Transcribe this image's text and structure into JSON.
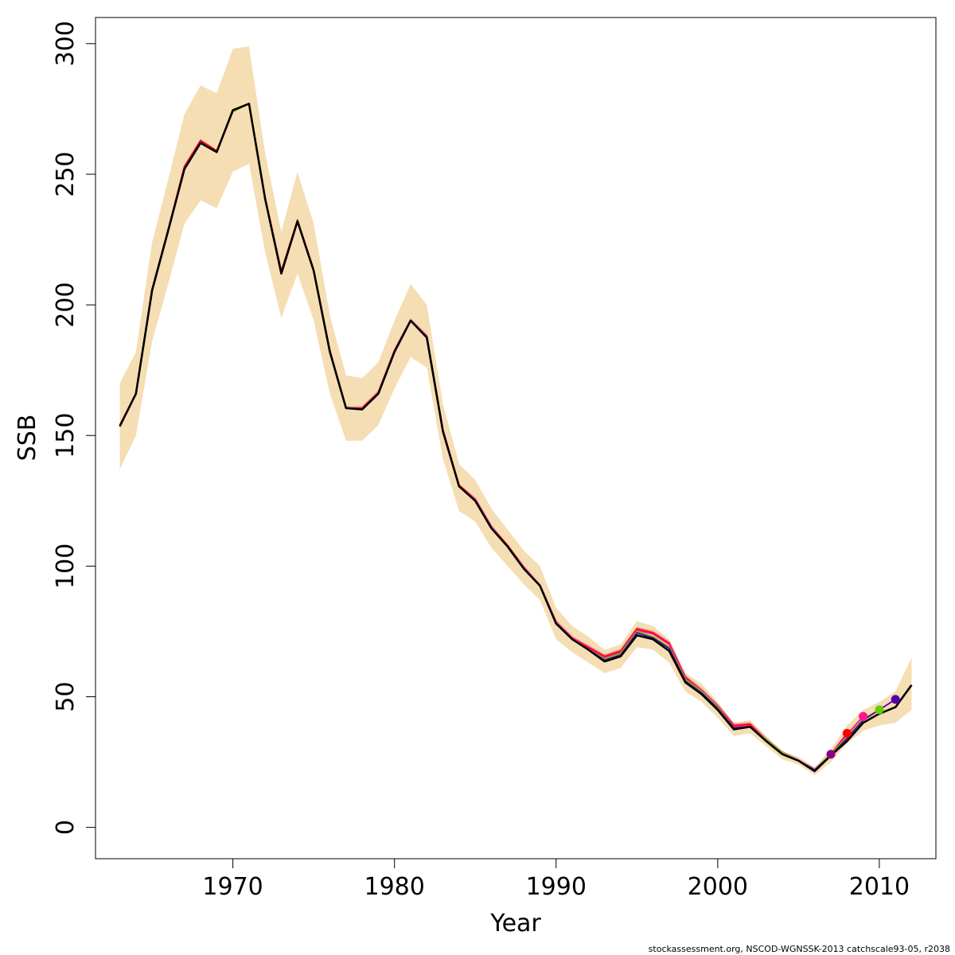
{
  "chart_data": {
    "type": "line",
    "title": "",
    "xlabel": "Year",
    "ylabel": "SSB",
    "xlim": [
      1961.5,
      2013.5
    ],
    "ylim": [
      -12,
      310
    ],
    "xticks": [
      1970,
      1980,
      1990,
      2000,
      2010
    ],
    "yticks": [
      0,
      50,
      100,
      150,
      200,
      250,
      300
    ],
    "grid": false,
    "band_color": "#f5deb3",
    "footnote": "stockassessment.org, NSCOD-WGNSSK-2013  catchscale93-05, r2038",
    "series": [
      {
        "role": "confidence band",
        "color": "#f5deb3",
        "x": [
          1963,
          1964,
          1965,
          1966,
          1967,
          1968,
          1969,
          1970,
          1971,
          1972,
          1973,
          1974,
          1975,
          1976,
          1977,
          1978,
          1979,
          1980,
          1981,
          1982,
          1983,
          1984,
          1985,
          1986,
          1987,
          1988,
          1989,
          1990,
          1991,
          1992,
          1993,
          1994,
          1995,
          1996,
          1997,
          1998,
          1999,
          2000,
          2001,
          2002,
          2003,
          2004,
          2005,
          2006,
          2007,
          2008,
          2009,
          2010,
          2011,
          2012
        ],
        "lower": [
          137,
          150,
          186,
          208,
          231,
          240,
          237,
          251,
          254,
          220,
          195,
          212,
          194,
          166,
          148,
          148,
          154,
          168,
          180,
          176,
          141,
          121,
          117,
          107,
          100,
          93,
          87,
          72,
          67,
          63,
          59,
          61,
          69,
          68,
          63,
          52,
          48,
          42,
          35,
          36,
          31,
          26,
          24,
          20,
          25,
          32,
          37,
          39,
          40,
          45
        ],
        "upper": [
          170,
          182,
          224,
          248,
          273,
          284,
          281,
          298,
          299,
          258,
          228,
          251,
          231,
          196,
          173,
          172,
          178,
          194,
          208,
          200,
          162,
          139,
          133,
          122,
          114,
          106,
          100,
          84,
          77,
          73,
          68,
          70,
          79,
          77,
          72,
          59,
          55,
          48,
          40,
          41,
          35,
          29,
          27,
          23,
          30,
          39,
          45,
          48,
          52,
          65
        ]
      },
      {
        "role": "retrospective",
        "color": "#e8a0a0",
        "x": [
          1963,
          1964,
          1965,
          1966,
          1967,
          1968,
          1969,
          1970,
          1971,
          1972,
          1973,
          1974,
          1975,
          1976,
          1977,
          1978,
          1979,
          1980,
          1981,
          1982,
          1983,
          1984,
          1985,
          1986,
          1987,
          1988,
          1989,
          1990,
          1991,
          1992,
          1993,
          1994,
          1995,
          1996,
          1997,
          1998,
          1999,
          2000,
          2001,
          2002,
          2003,
          2004,
          2005,
          2006,
          2007
        ],
        "values": [
          154,
          166,
          206,
          229,
          253,
          263,
          259,
          274.5,
          277,
          241,
          213,
          232.5,
          213.5,
          183,
          161,
          161,
          167,
          183,
          194.5,
          188.5,
          152.5,
          131,
          126,
          115.5,
          108,
          100,
          93,
          79,
          73,
          69.5,
          66,
          68,
          76.5,
          75,
          71,
          58,
          53,
          47,
          39.5,
          40,
          34,
          29,
          26,
          22.5,
          28
        ]
      },
      {
        "role": "retrospective",
        "color": "#ff0000",
        "x": [
          1963,
          1964,
          1965,
          1966,
          1967,
          1968,
          1969,
          1970,
          1971,
          1972,
          1973,
          1974,
          1975,
          1976,
          1977,
          1978,
          1979,
          1980,
          1981,
          1982,
          1983,
          1984,
          1985,
          1986,
          1987,
          1988,
          1989,
          1990,
          1991,
          1992,
          1993,
          1994,
          1995,
          1996,
          1997,
          1998,
          1999,
          2000,
          2001,
          2002,
          2003,
          2004,
          2005,
          2006,
          2007,
          2008
        ],
        "values": [
          154,
          166,
          206,
          229,
          253,
          263,
          259,
          274,
          277,
          241,
          213,
          232.5,
          213.5,
          182.5,
          160.5,
          160.5,
          166.5,
          182.5,
          194,
          188,
          152,
          131,
          125.5,
          115,
          108,
          99.5,
          92.5,
          78.5,
          72.5,
          69,
          65.5,
          67.5,
          76,
          74.5,
          70.5,
          57.5,
          52.5,
          46.5,
          39,
          39.5,
          33.5,
          28.5,
          25.5,
          22,
          28,
          36
        ]
      },
      {
        "role": "retrospective",
        "color": "#ff1493",
        "x": [
          1963,
          1964,
          1965,
          1966,
          1967,
          1968,
          1969,
          1970,
          1971,
          1972,
          1973,
          1974,
          1975,
          1976,
          1977,
          1978,
          1979,
          1980,
          1981,
          1982,
          1983,
          1984,
          1985,
          1986,
          1987,
          1988,
          1989,
          1990,
          1991,
          1992,
          1993,
          1994,
          1995,
          1996,
          1997,
          1998,
          1999,
          2000,
          2001,
          2002,
          2003,
          2004,
          2005,
          2006,
          2007,
          2008,
          2009
        ],
        "values": [
          154,
          166,
          206,
          229,
          252.5,
          262.5,
          258.5,
          274,
          277,
          241,
          212.5,
          232,
          213,
          182.5,
          160.5,
          160,
          166.5,
          182.5,
          194,
          188,
          152,
          130.5,
          125.5,
          115,
          107.5,
          99.5,
          92.5,
          78.5,
          72.5,
          68.5,
          65,
          67,
          75.5,
          74,
          70,
          57,
          52.5,
          46.5,
          38.5,
          39,
          33.5,
          28.5,
          25.5,
          22,
          28,
          35.5,
          42.5
        ]
      },
      {
        "role": "retrospective",
        "color": "#66cc00",
        "x": [
          1963,
          1964,
          1965,
          1966,
          1967,
          1968,
          1969,
          1970,
          1971,
          1972,
          1973,
          1974,
          1975,
          1976,
          1977,
          1978,
          1979,
          1980,
          1981,
          1982,
          1983,
          1984,
          1985,
          1986,
          1987,
          1988,
          1989,
          1990,
          1991,
          1992,
          1993,
          1994,
          1995,
          1996,
          1997,
          1998,
          1999,
          2000,
          2001,
          2002,
          2003,
          2004,
          2005,
          2006,
          2007,
          2008,
          2009,
          2010
        ],
        "values": [
          153.5,
          166,
          205.5,
          228.5,
          252,
          262,
          258.5,
          274,
          277,
          240.5,
          212,
          232,
          213,
          182,
          160.5,
          160,
          166,
          182,
          194,
          187.5,
          151.5,
          130.5,
          125,
          114.5,
          107.5,
          99,
          92.5,
          78,
          72,
          68,
          64.5,
          66.5,
          75,
          73,
          69,
          56.5,
          52,
          46,
          38,
          38.5,
          33.5,
          28.5,
          25.5,
          22,
          28,
          34.5,
          41.5,
          45
        ]
      },
      {
        "role": "retrospective",
        "color": "#5500aa",
        "x": [
          1963,
          1964,
          1965,
          1966,
          1967,
          1968,
          1969,
          1970,
          1971,
          1972,
          1973,
          1974,
          1975,
          1976,
          1977,
          1978,
          1979,
          1980,
          1981,
          1982,
          1983,
          1984,
          1985,
          1986,
          1987,
          1988,
          1989,
          1990,
          1991,
          1992,
          1993,
          1994,
          1995,
          1996,
          1997,
          1998,
          1999,
          2000,
          2001,
          2002,
          2003,
          2004,
          2005,
          2006,
          2007,
          2008,
          2009,
          2010,
          2011
        ],
        "values": [
          153.5,
          166,
          205.5,
          228.5,
          252,
          262,
          258.5,
          274.5,
          277,
          240.5,
          212,
          232,
          213,
          182,
          160.5,
          160,
          166,
          182,
          194,
          187.5,
          151.5,
          130.5,
          125,
          114.5,
          107.5,
          99,
          92.5,
          78,
          72,
          68,
          64,
          66,
          74.5,
          72.5,
          68.5,
          56,
          51.5,
          45.5,
          38,
          38.5,
          33,
          28,
          25.5,
          22,
          27.5,
          34,
          41,
          45,
          49
        ]
      },
      {
        "role": "estimate",
        "name": "",
        "color": "#000000",
        "x": [
          1963,
          1964,
          1965,
          1966,
          1967,
          1968,
          1969,
          1970,
          1971,
          1972,
          1973,
          1974,
          1975,
          1976,
          1977,
          1978,
          1979,
          1980,
          1981,
          1982,
          1983,
          1984,
          1985,
          1986,
          1987,
          1988,
          1989,
          1990,
          1991,
          1992,
          1993,
          1994,
          1995,
          1996,
          1997,
          1998,
          1999,
          2000,
          2001,
          2002,
          2003,
          2004,
          2005,
          2006,
          2007,
          2008,
          2009,
          2010,
          2011,
          2012
        ],
        "values": [
          153.5,
          166,
          205.5,
          228.5,
          252,
          262,
          258.5,
          274.5,
          277,
          240.5,
          212,
          232,
          213,
          182,
          160.5,
          160,
          166,
          182,
          194,
          187.5,
          151.5,
          130.5,
          125,
          114.5,
          107.5,
          99,
          92.5,
          78,
          72,
          68,
          63.5,
          65.5,
          73.5,
          72,
          67.5,
          55.5,
          51,
          45,
          37.5,
          38.5,
          33,
          28,
          25.5,
          21.5,
          27.5,
          33,
          40,
          43.5,
          46,
          54.5
        ]
      }
    ],
    "terminal_points": [
      {
        "year": 2007,
        "value": 28,
        "color": "#8b008b"
      },
      {
        "year": 2008,
        "value": 36,
        "color": "#ff0000"
      },
      {
        "year": 2009,
        "value": 42.5,
        "color": "#ff1493"
      },
      {
        "year": 2010,
        "value": 45,
        "color": "#66cc00"
      },
      {
        "year": 2011,
        "value": 49,
        "color": "#5500aa"
      }
    ]
  }
}
